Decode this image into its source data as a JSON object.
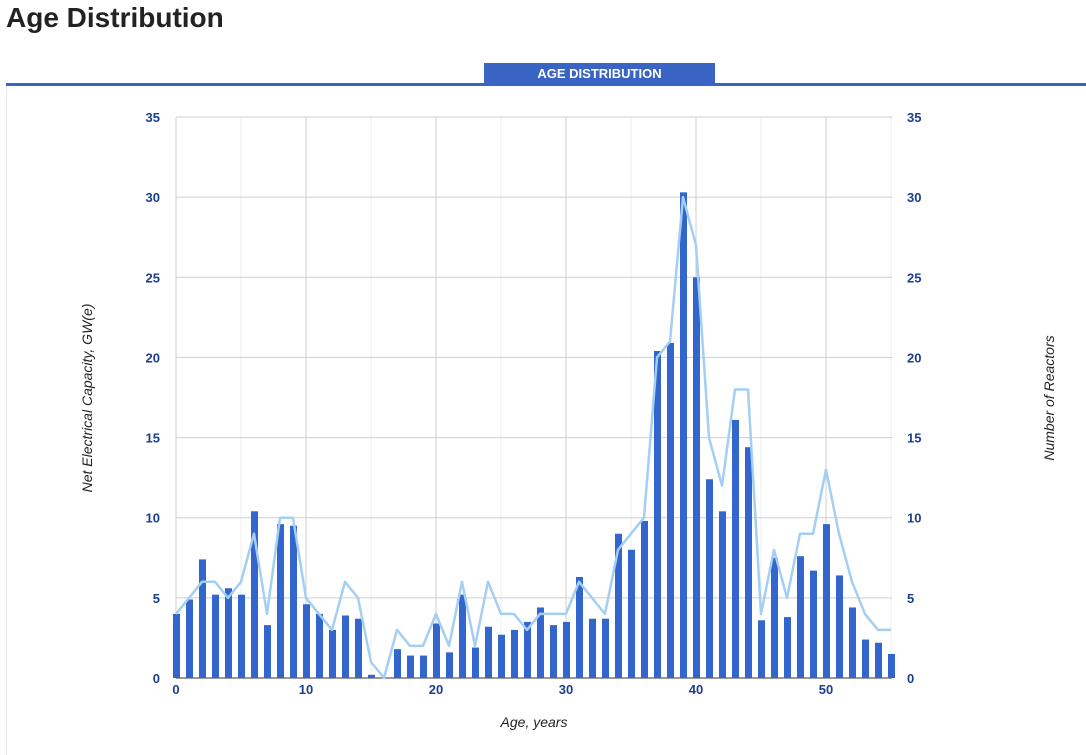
{
  "page": {
    "title": "Age Distribution"
  },
  "tabs": [
    {
      "label": "AGE DISTRIBUTION",
      "active": true
    }
  ],
  "colors": {
    "accent": "#3a64c4",
    "bar": "#3366cc",
    "line": "#a4cff3",
    "tick_text": "#1b3f8f"
  },
  "chart_data": {
    "type": "bar",
    "xlabel": "Age, years",
    "ylabel_left": "Net Electrical Capacity, GW(e)",
    "ylabel_right": "Number of Reactors",
    "x_ticks": [
      0,
      10,
      20,
      30,
      40,
      50
    ],
    "y_ticks": [
      0,
      5,
      10,
      15,
      20,
      25,
      30,
      35
    ],
    "xlim": [
      0,
      55
    ],
    "ylim": [
      0,
      35
    ],
    "grid": true,
    "legend": "none",
    "x": [
      0,
      1,
      2,
      3,
      4,
      5,
      6,
      7,
      8,
      9,
      10,
      11,
      12,
      13,
      14,
      15,
      16,
      17,
      18,
      19,
      20,
      21,
      22,
      23,
      24,
      25,
      26,
      27,
      28,
      29,
      30,
      31,
      32,
      33,
      34,
      35,
      36,
      37,
      38,
      39,
      40,
      41,
      42,
      43,
      44,
      45,
      46,
      47,
      48,
      49,
      50,
      51,
      52,
      53,
      54,
      55
    ],
    "series": [
      {
        "name": "Net Electrical Capacity, GW(e)",
        "kind": "bar",
        "axis": "left",
        "values": [
          4.0,
          4.9,
          7.4,
          5.2,
          5.6,
          5.2,
          10.4,
          3.3,
          9.6,
          9.5,
          4.6,
          4.0,
          3.0,
          3.9,
          3.7,
          0.2,
          0,
          1.8,
          1.4,
          1.4,
          3.4,
          1.6,
          5.2,
          1.9,
          3.2,
          2.7,
          3.0,
          3.5,
          4.4,
          3.3,
          3.5,
          6.3,
          3.7,
          3.7,
          9.0,
          8.0,
          9.8,
          20.4,
          20.9,
          30.3,
          25.0,
          12.4,
          10.4,
          16.1,
          14.4,
          3.6,
          7.5,
          3.8,
          7.6,
          6.7,
          9.6,
          6.4,
          4.4,
          2.4,
          2.2,
          1.5
        ]
      },
      {
        "name": "Number of Reactors",
        "kind": "line",
        "axis": "right",
        "values": [
          4,
          5,
          6,
          6,
          5,
          6,
          9,
          4,
          10,
          10,
          5,
          4,
          3,
          6,
          5,
          1,
          0,
          3,
          2,
          2,
          4,
          2,
          6,
          2,
          6,
          4,
          4,
          3,
          4,
          4,
          4,
          6,
          5,
          4,
          8,
          9,
          10,
          20,
          21,
          30,
          27,
          15,
          12,
          18,
          18,
          4,
          8,
          5,
          9,
          9,
          13,
          9,
          6,
          4,
          3,
          3
        ]
      }
    ]
  }
}
